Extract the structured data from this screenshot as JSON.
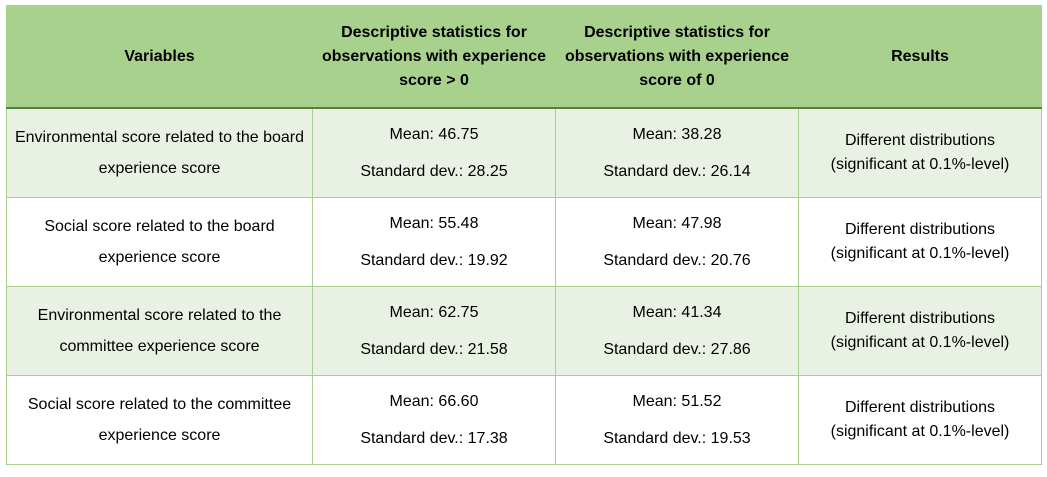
{
  "headers": [
    "Variables",
    "Descriptive statistics for observations with experience score > 0",
    "Descriptive statistics for observations with experience score of 0",
    "Results"
  ],
  "rows": [
    {
      "variable": "Environmental score related to the board experience score",
      "pos_mean": "Mean: 46.75",
      "pos_sd": "Standard dev.: 28.25",
      "zero_mean": "Mean: 38.28",
      "zero_sd": "Standard dev.: 26.14",
      "result_line1": "Different distributions",
      "result_line2": "(significant at 0.1%-level)"
    },
    {
      "variable": "Social score related to the board experience score",
      "pos_mean": "Mean: 55.48",
      "pos_sd": "Standard dev.: 19.92",
      "zero_mean": "Mean: 47.98",
      "zero_sd": "Standard dev.: 20.76",
      "result_line1": "Different distributions",
      "result_line2": "(significant at 0.1%-level)"
    },
    {
      "variable": "Environmental score related to the committee experience score",
      "pos_mean": "Mean: 62.75",
      "pos_sd": "Standard dev.: 21.58",
      "zero_mean": "Mean: 41.34",
      "zero_sd": "Standard dev.: 27.86",
      "result_line1": "Different distributions",
      "result_line2": "(significant at 0.1%-level)"
    },
    {
      "variable": "Social score related to the committee experience score",
      "pos_mean": "Mean: 66.60",
      "pos_sd": "Standard dev.: 17.38",
      "zero_mean": "Mean: 51.52",
      "zero_sd": "Standard dev.: 19.53",
      "result_line1": "Different distributions",
      "result_line2": "(significant at 0.1%-level)"
    }
  ],
  "colors": {
    "header_bg": "#a9d18e",
    "shaded_row_bg": "#e9f1e4",
    "border": "#a9d08e"
  }
}
